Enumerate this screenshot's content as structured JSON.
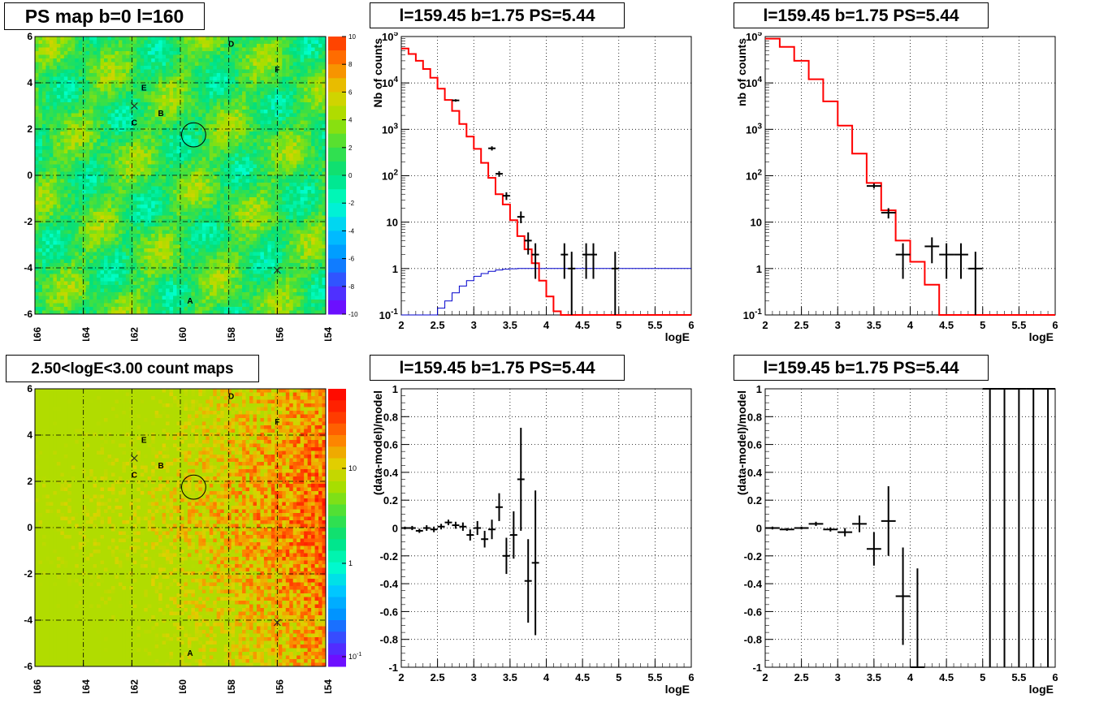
{
  "panels": {
    "map_top": {
      "title": "PS map b=0 l=160",
      "x_ticks": [
        "166",
        "164",
        "162",
        "160",
        "158",
        "156",
        "154"
      ],
      "y_ticks": [
        "6",
        "4",
        "2",
        "0",
        "-2",
        "-4",
        "-6"
      ],
      "scale_ticks": [
        "10",
        "8",
        "6",
        "4",
        "2",
        "0",
        "-2",
        "-4",
        "-6",
        "-8",
        "-10"
      ],
      "letters": [
        "A",
        "B",
        "C",
        "D",
        "E",
        "F"
      ]
    },
    "map_bottom": {
      "title": "2.50<logE<3.00 count maps",
      "x_ticks": [
        "166",
        "164",
        "162",
        "160",
        "158",
        "156",
        "154"
      ],
      "y_ticks": [
        "6",
        "4",
        "2",
        "0",
        "-2",
        "-4",
        "-6"
      ],
      "scale_ticks": [
        "10",
        "1",
        "10",
        "-1"
      ]
    },
    "spec_left": {
      "title": "l=159.45 b=1.75 PS=5.44",
      "ylabel": "Nb of counts",
      "xlabel": "logE"
    },
    "spec_right": {
      "title": "l=159.45 b=1.75 PS=5.44",
      "ylabel": "nb of counts",
      "xlabel": "logE"
    },
    "res_left": {
      "title": "l=159.45 b=1.75 PS=5.44",
      "ylabel": "(data-model)/model",
      "xlabel": "logE"
    },
    "res_right": {
      "title": "l=159.45 b=1.75 PS=5.44",
      "ylabel": "(data-model)/model",
      "xlabel": "logE"
    }
  },
  "chart_data": [
    {
      "type": "heatmap",
      "title": "PS map b=0 l=160",
      "xlim": [
        166,
        154
      ],
      "ylim": [
        -6,
        6
      ],
      "zlim": [
        -10,
        10
      ],
      "colorscale": [
        "#7a00ff",
        "#4040ff",
        "#0090ff",
        "#00c8ff",
        "#00ffc8",
        "#00e080",
        "#40e040",
        "#a0e000",
        "#e0d000",
        "#ff8000",
        "#ff3000"
      ],
      "background_value": 0,
      "markers": [
        {
          "label": "A",
          "l": 159.6,
          "b": -5.4
        },
        {
          "label": "B",
          "l": 160.8,
          "b": 2.7
        },
        {
          "label": "C",
          "l": 161.9,
          "b": 2.3
        },
        {
          "label": "D",
          "l": 157.9,
          "b": 5.7
        },
        {
          "label": "E",
          "l": 161.5,
          "b": 3.8
        },
        {
          "label": "F",
          "l": 156.0,
          "b": 4.6
        }
      ],
      "crosses": [
        {
          "l": 161.9,
          "b": 3.0
        },
        {
          "l": 156.0,
          "b": -4.1
        }
      ],
      "circle": {
        "l": 159.45,
        "b": 1.75,
        "r": 0.5
      }
    },
    {
      "type": "heatmap",
      "title": "2.50<logE<3.00 count maps",
      "xlim": [
        166,
        154
      ],
      "ylim": [
        -6,
        6
      ],
      "log_z": true,
      "colorscale": [
        "#7a00ff",
        "#4040ff",
        "#0090ff",
        "#00c8ff",
        "#00ffc8",
        "#00e080",
        "#40e040",
        "#a0e000",
        "#e0d000",
        "#ff8000",
        "#ff3000",
        "#ff0000"
      ],
      "markers": [
        {
          "label": "A",
          "l": 159.6,
          "b": -5.4
        },
        {
          "label": "B",
          "l": 160.8,
          "b": 2.7
        },
        {
          "label": "C",
          "l": 161.9,
          "b": 2.3
        },
        {
          "label": "D",
          "l": 157.9,
          "b": 5.7
        },
        {
          "label": "E",
          "l": 161.5,
          "b": 3.8
        },
        {
          "label": "F",
          "l": 156.0,
          "b": 4.6
        }
      ],
      "crosses": [
        {
          "l": 161.9,
          "b": 3.0
        },
        {
          "l": 156.0,
          "b": -4.1
        }
      ],
      "circle": {
        "l": 159.45,
        "b": 1.75,
        "r": 0.5
      }
    },
    {
      "type": "line",
      "title": "l=159.45 b=1.75 PS=5.44",
      "xlabel": "logE",
      "ylabel": "Nb of counts",
      "log_y": true,
      "xlim": [
        2,
        6
      ],
      "ylim": [
        0.1,
        100000
      ],
      "x_ticks": [
        "2",
        "2.5",
        "3",
        "3.5",
        "4",
        "4.5",
        "5",
        "5.5",
        "6"
      ],
      "y_ticks": [
        {
          "v": 100000,
          "t": "10",
          "sup": "5"
        },
        {
          "v": 10000,
          "t": "10",
          "sup": "4"
        },
        {
          "v": 1000,
          "t": "10",
          "sup": "3"
        },
        {
          "v": 100,
          "t": "10",
          "sup": "2"
        },
        {
          "v": 10,
          "t": "10",
          "sup": ""
        },
        {
          "v": 1,
          "t": "1",
          "sup": ""
        },
        {
          "v": 0.1,
          "t": "10",
          "sup": "-1"
        }
      ],
      "model_step": {
        "edges": [
          2.0,
          2.1,
          2.2,
          2.3,
          2.4,
          2.5,
          2.6,
          2.7,
          2.8,
          2.9,
          3.0,
          3.1,
          3.2,
          3.3,
          3.4,
          3.5,
          3.6,
          3.7,
          3.8,
          3.9,
          4.0,
          4.1,
          4.2,
          4.3,
          4.4,
          4.5,
          4.6,
          4.7,
          4.8,
          4.9,
          5.0,
          5.1,
          5.2,
          5.3,
          5.4,
          5.5,
          5.6,
          5.7,
          5.8,
          5.9,
          6.0
        ],
        "values": [
          55000,
          42000,
          30000,
          20000,
          13000,
          7500,
          4300,
          2500,
          1300,
          700,
          380,
          190,
          90,
          40,
          24,
          11,
          5,
          2.6,
          1.3,
          0.55,
          0.25,
          0.12,
          0.1,
          0.1,
          0.1,
          0.1,
          0.1,
          0.1,
          0.1,
          0.1,
          0.1,
          0.1,
          0.1,
          0.1,
          0.1,
          0.1,
          0.1,
          0.1,
          0.1,
          0.1
        ]
      },
      "exposure_step": {
        "edges": [
          2.0,
          2.1,
          2.2,
          2.3,
          2.4,
          2.5,
          2.6,
          2.7,
          2.8,
          2.9,
          3.0,
          3.1,
          3.2,
          3.3,
          3.4,
          3.5,
          3.6,
          3.7,
          3.8,
          3.9,
          4.0,
          4.1,
          4.2,
          4.3,
          4.4,
          4.5,
          4.6,
          4.7,
          4.8,
          4.9,
          5.0,
          5.1,
          5.2,
          5.3,
          5.4,
          5.5,
          5.6,
          5.7,
          5.8,
          5.9,
          6.0
        ],
        "values": [
          0.1,
          0.1,
          0.1,
          0.1,
          0.1,
          0.14,
          0.2,
          0.3,
          0.42,
          0.55,
          0.68,
          0.78,
          0.87,
          0.93,
          0.97,
          0.99,
          1,
          1,
          1,
          1,
          1,
          1,
          1,
          1,
          1,
          1,
          1,
          1,
          1,
          1,
          1,
          1,
          1,
          1,
          1,
          1,
          1,
          1,
          1,
          1
        ]
      },
      "points": [
        {
          "x": 2.75,
          "y": 4200,
          "ylo": 3950,
          "yhi": 4450,
          "xw": 0.05
        },
        {
          "x": 3.25,
          "y": 390,
          "ylo": 350,
          "yhi": 430,
          "xw": 0.05
        },
        {
          "x": 3.35,
          "y": 110,
          "ylo": 95,
          "yhi": 125,
          "xw": 0.05
        },
        {
          "x": 3.45,
          "y": 37,
          "ylo": 30,
          "yhi": 44,
          "xw": 0.05
        },
        {
          "x": 3.65,
          "y": 13,
          "ylo": 9.5,
          "yhi": 17,
          "xw": 0.05
        },
        {
          "x": 3.75,
          "y": 4,
          "ylo": 2,
          "yhi": 6,
          "xw": 0.05
        },
        {
          "x": 3.85,
          "y": 2,
          "ylo": 0.6,
          "yhi": 3.5,
          "xw": 0.05
        },
        {
          "x": 4.25,
          "y": 2,
          "ylo": 0.6,
          "yhi": 3.5,
          "xw": 0.05
        },
        {
          "x": 4.35,
          "y": 1,
          "ylo": 0.1,
          "yhi": 2.3,
          "xw": 0.05
        },
        {
          "x": 4.55,
          "y": 2,
          "ylo": 0.6,
          "yhi": 3.5,
          "xw": 0.05
        },
        {
          "x": 4.65,
          "y": 2,
          "ylo": 0.6,
          "yhi": 3.5,
          "xw": 0.05
        },
        {
          "x": 4.95,
          "y": 1,
          "ylo": 0.1,
          "yhi": 2.3,
          "xw": 0.05
        }
      ]
    },
    {
      "type": "line",
      "title": "l=159.45 b=1.75 PS=5.44",
      "xlabel": "logE",
      "ylabel": "nb of counts",
      "log_y": true,
      "xlim": [
        2,
        6
      ],
      "ylim": [
        0.1,
        100000
      ],
      "x_ticks": [
        "2",
        "2.5",
        "3",
        "3.5",
        "4",
        "4.5",
        "5",
        "5.5",
        "6"
      ],
      "y_ticks": [
        {
          "v": 100000,
          "t": "10",
          "sup": "5"
        },
        {
          "v": 10000,
          "t": "10",
          "sup": "4"
        },
        {
          "v": 1000,
          "t": "10",
          "sup": "3"
        },
        {
          "v": 100,
          "t": "10",
          "sup": "2"
        },
        {
          "v": 10,
          "t": "10",
          "sup": ""
        },
        {
          "v": 1,
          "t": "1",
          "sup": ""
        },
        {
          "v": 0.1,
          "t": "10",
          "sup": "-1"
        }
      ],
      "model_step": {
        "edges": [
          2.0,
          2.2,
          2.4,
          2.6,
          2.8,
          3.0,
          3.2,
          3.4,
          3.6,
          3.8,
          4.0,
          4.2,
          4.4,
          4.6,
          4.8,
          5.0,
          5.2,
          5.4,
          5.6,
          5.8,
          6.0
        ],
        "values": [
          90000,
          60000,
          30000,
          12000,
          4000,
          1200,
          300,
          70,
          18,
          4,
          1.4,
          0.45,
          0.1,
          0.1,
          0.1,
          0.1,
          0.1,
          0.1,
          0.1,
          0.1
        ]
      },
      "points": [
        {
          "x": 3.5,
          "y": 60,
          "ylo": 53,
          "yhi": 68,
          "xw": 0.1
        },
        {
          "x": 3.7,
          "y": 16,
          "ylo": 12,
          "yhi": 20,
          "xw": 0.1
        },
        {
          "x": 3.9,
          "y": 2,
          "ylo": 0.6,
          "yhi": 3.5,
          "xw": 0.1
        },
        {
          "x": 4.3,
          "y": 3,
          "ylo": 1.3,
          "yhi": 4.7,
          "xw": 0.1
        },
        {
          "x": 4.5,
          "y": 2,
          "ylo": 0.6,
          "yhi": 3.5,
          "xw": 0.1
        },
        {
          "x": 4.7,
          "y": 2,
          "ylo": 0.6,
          "yhi": 3.5,
          "xw": 0.1
        },
        {
          "x": 4.9,
          "y": 1,
          "ylo": 0.1,
          "yhi": 2.3,
          "xw": 0.1
        }
      ]
    },
    {
      "type": "scatter",
      "title": "l=159.45 b=1.75 PS=5.44",
      "xlabel": "logE",
      "ylabel": "(data-model)/model",
      "xlim": [
        2,
        6
      ],
      "ylim": [
        -1,
        1
      ],
      "x_ticks": [
        "2",
        "2.5",
        "3",
        "3.5",
        "4",
        "4.5",
        "5",
        "5.5",
        "6"
      ],
      "y_ticks": [
        "1",
        "0.8",
        "0.6",
        "0.4",
        "0.2",
        "0",
        "-0.2",
        "-0.4",
        "-0.6",
        "-0.8",
        "-1"
      ],
      "points": [
        {
          "x": 2.05,
          "y": 0.0,
          "ylo": -0.01,
          "yhi": 0.01
        },
        {
          "x": 2.15,
          "y": 0.0,
          "ylo": -0.015,
          "yhi": 0.015
        },
        {
          "x": 2.25,
          "y": -0.02,
          "ylo": -0.035,
          "yhi": -0.005
        },
        {
          "x": 2.35,
          "y": 0.0,
          "ylo": -0.02,
          "yhi": 0.02
        },
        {
          "x": 2.45,
          "y": -0.01,
          "ylo": -0.03,
          "yhi": 0.01
        },
        {
          "x": 2.55,
          "y": 0.01,
          "ylo": -0.01,
          "yhi": 0.03
        },
        {
          "x": 2.65,
          "y": 0.04,
          "ylo": 0.02,
          "yhi": 0.06
        },
        {
          "x": 2.75,
          "y": 0.02,
          "ylo": -0.005,
          "yhi": 0.045
        },
        {
          "x": 2.85,
          "y": 0.01,
          "ylo": -0.02,
          "yhi": 0.04
        },
        {
          "x": 2.95,
          "y": -0.05,
          "ylo": -0.09,
          "yhi": -0.01
        },
        {
          "x": 3.05,
          "y": 0.0,
          "ylo": -0.05,
          "yhi": 0.05
        },
        {
          "x": 3.15,
          "y": -0.08,
          "ylo": -0.14,
          "yhi": -0.02
        },
        {
          "x": 3.25,
          "y": -0.01,
          "ylo": -0.08,
          "yhi": 0.06
        },
        {
          "x": 3.35,
          "y": 0.15,
          "ylo": 0.05,
          "yhi": 0.25
        },
        {
          "x": 3.45,
          "y": -0.2,
          "ylo": -0.33,
          "yhi": -0.07
        },
        {
          "x": 3.55,
          "y": -0.05,
          "ylo": -0.22,
          "yhi": 0.12
        },
        {
          "x": 3.65,
          "y": 0.35,
          "ylo": -0.02,
          "yhi": 0.72
        },
        {
          "x": 3.75,
          "y": -0.38,
          "ylo": -0.68,
          "yhi": -0.08
        },
        {
          "x": 3.85,
          "y": -0.25,
          "ylo": -0.77,
          "yhi": 0.27
        }
      ],
      "xw": 0.05
    },
    {
      "type": "scatter",
      "title": "l=159.45 b=1.75 PS=5.44",
      "xlabel": "logE",
      "ylabel": "(data-model)/model",
      "xlim": [
        2,
        6
      ],
      "ylim": [
        -1,
        1
      ],
      "x_ticks": [
        "2",
        "2.5",
        "3",
        "3.5",
        "4",
        "4.5",
        "5",
        "5.5",
        "6"
      ],
      "y_ticks": [
        "1",
        "0.8",
        "0.6",
        "0.4",
        "0.2",
        "0",
        "-0.2",
        "-0.4",
        "-0.6",
        "-0.8",
        "-1"
      ],
      "points": [
        {
          "x": 2.1,
          "y": 0.0,
          "ylo": -0.01,
          "yhi": 0.01
        },
        {
          "x": 2.3,
          "y": -0.01,
          "ylo": -0.02,
          "yhi": 0.0
        },
        {
          "x": 2.5,
          "y": 0.0,
          "ylo": -0.01,
          "yhi": 0.01
        },
        {
          "x": 2.7,
          "y": 0.03,
          "ylo": 0.015,
          "yhi": 0.045
        },
        {
          "x": 2.9,
          "y": -0.01,
          "ylo": -0.025,
          "yhi": 0.005
        },
        {
          "x": 3.1,
          "y": -0.03,
          "ylo": -0.06,
          "yhi": 0.0
        },
        {
          "x": 3.3,
          "y": 0.03,
          "ylo": -0.03,
          "yhi": 0.09
        },
        {
          "x": 3.5,
          "y": -0.15,
          "ylo": -0.27,
          "yhi": -0.03
        },
        {
          "x": 3.7,
          "y": 0.05,
          "ylo": -0.2,
          "yhi": 0.3
        },
        {
          "x": 3.9,
          "y": -0.49,
          "ylo": -0.84,
          "yhi": -0.14
        },
        {
          "x": 4.1,
          "y": -1.0,
          "ylo": -1.0,
          "yhi": -0.29
        },
        {
          "x": 5.1,
          "y": 1.0,
          "ylo": -1.0,
          "yhi": 1.0
        },
        {
          "x": 5.3,
          "y": 1.0,
          "ylo": -1.0,
          "yhi": 1.0
        },
        {
          "x": 5.5,
          "y": 1.0,
          "ylo": -1.0,
          "yhi": 1.0
        },
        {
          "x": 5.7,
          "y": 1.0,
          "ylo": -1.0,
          "yhi": 1.0
        },
        {
          "x": 5.9,
          "y": 1.0,
          "ylo": -1.0,
          "yhi": 1.0
        }
      ],
      "xw": 0.1
    }
  ]
}
